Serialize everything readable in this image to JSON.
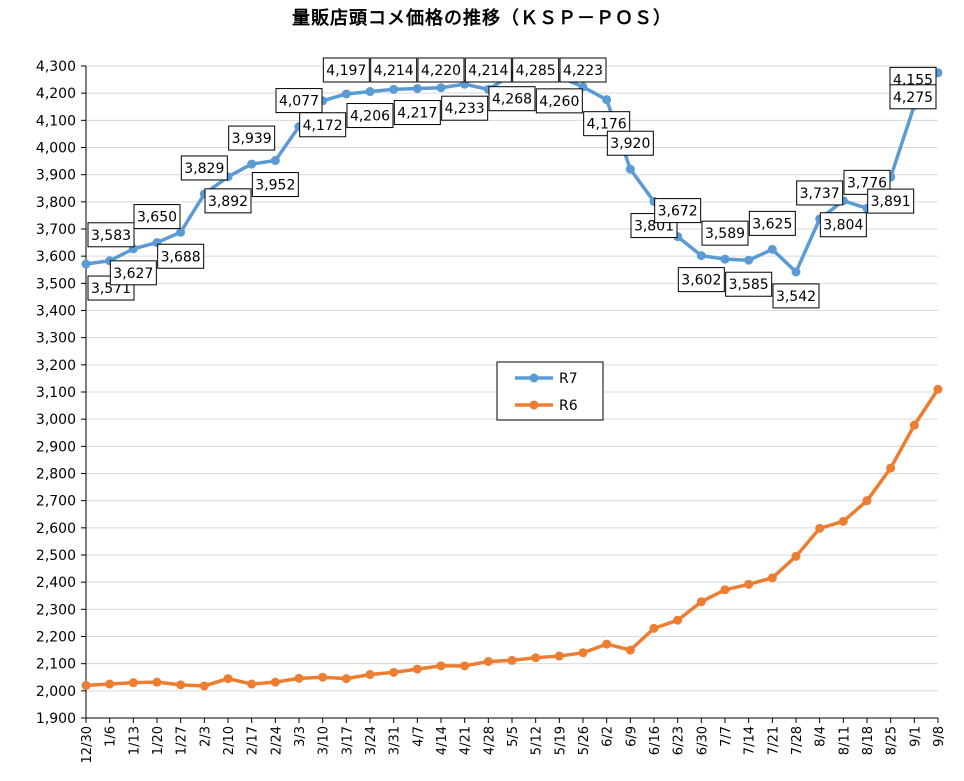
{
  "chart_data": {
    "type": "line",
    "title": "量販店頭コメ価格の推移（ＫＳＰ－ＰＯＳ）",
    "xlabel": "",
    "ylabel": "",
    "ylim": [
      1900,
      4300
    ],
    "ytick_step": 100,
    "grid": "y-major",
    "legend_position": "center-right",
    "categories": [
      "12/30",
      "1/6",
      "1/13",
      "1/20",
      "1/27",
      "2/3",
      "2/10",
      "2/17",
      "2/24",
      "3/3",
      "3/10",
      "3/17",
      "3/24",
      "3/31",
      "4/7",
      "4/14",
      "4/21",
      "4/28",
      "5/5",
      "5/12",
      "5/19",
      "5/26",
      "6/2",
      "6/9",
      "6/16",
      "6/23",
      "6/30",
      "7/7",
      "7/14",
      "7/21",
      "7/28",
      "8/4",
      "8/11",
      "8/18",
      "8/25",
      "9/1",
      "9/8"
    ],
    "series": [
      {
        "name": "R7",
        "color": "#5b9bd5",
        "values": [
          3571,
          3583,
          3627,
          3650,
          3688,
          3829,
          3892,
          3939,
          3952,
          4077,
          4172,
          4197,
          4206,
          4214,
          4217,
          4220,
          4233,
          4214,
          4268,
          4285,
          4260,
          4223,
          4176,
          3920,
          3801,
          3672,
          3602,
          3589,
          3585,
          3625,
          3542,
          3737,
          3804,
          3776,
          3891,
          4155,
          4275
        ],
        "labels": [
          "3,571",
          "3,583",
          "3,627",
          "3,650",
          "3,688",
          "3,829",
          "3,892",
          "3,939",
          "3,952",
          "4,077",
          "4,172",
          "4,197",
          "4,206",
          "4,214",
          "4,217",
          "4,220",
          "4,233",
          "4,214",
          "4,268",
          "4,285",
          "4,260",
          "4,223",
          "4,176",
          "3,920",
          "3,801",
          "3,672",
          "3,602",
          "3,589",
          "3,585",
          "3,625",
          "3,542",
          "3,737",
          "3,804",
          "3,776",
          "3,891",
          "4,155",
          "4,275"
        ]
      },
      {
        "name": "R6",
        "color": "#ed7d31",
        "values": [
          2020,
          2025,
          2030,
          2032,
          2022,
          2018,
          2045,
          2025,
          2032,
          2046,
          2050,
          2045,
          2060,
          2068,
          2080,
          2092,
          2092,
          2108,
          2112,
          2122,
          2128,
          2140,
          2172,
          2150,
          2230,
          2260,
          2328,
          2372,
          2392,
          2416,
          2495,
          2598,
          2624,
          2700,
          2820,
          2978,
          3110
        ]
      }
    ],
    "y_tick_labels": [
      "1,900",
      "2,000",
      "2,100",
      "2,200",
      "2,300",
      "2,400",
      "2,500",
      "2,600",
      "2,700",
      "2,800",
      "2,900",
      "3,000",
      "3,100",
      "3,200",
      "3,300",
      "3,400",
      "3,500",
      "3,600",
      "3,700",
      "3,800",
      "3,900",
      "4,000",
      "4,100",
      "4,200",
      "4,300"
    ]
  }
}
